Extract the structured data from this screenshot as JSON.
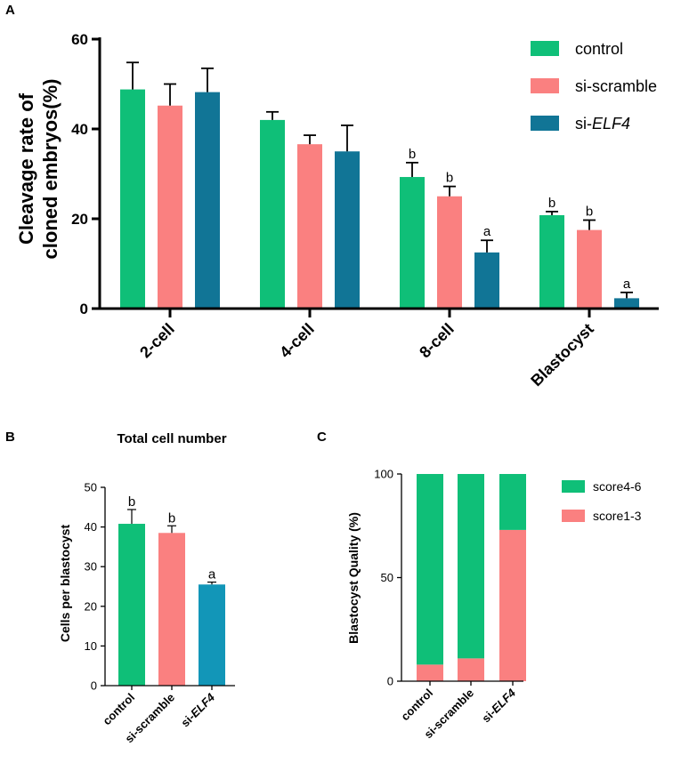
{
  "panel_labels": {
    "a": "A",
    "b": "B",
    "c": "C"
  },
  "chart_data": [
    {
      "id": "A",
      "type": "bar",
      "title": "",
      "ylabel_line1": "Cleavage rate of",
      "ylabel_line2": "cloned embryos(%)",
      "xlabel": "",
      "ylim": [
        0,
        60
      ],
      "yticks": [
        "0",
        "20",
        "40",
        "60"
      ],
      "categories": [
        "2-cell",
        "4-cell",
        "8-cell",
        "Blastocyst"
      ],
      "legend": {
        "position": "top-right",
        "prefix_3": "si-",
        "italic_3": "ELF4"
      },
      "series": [
        {
          "name": "control",
          "color": "#0fbf78",
          "values": [
            48.8,
            42.0,
            29.3,
            20.8
          ],
          "errors": [
            6.0,
            1.8,
            3.2,
            0.8
          ],
          "letters": [
            "",
            "",
            "b",
            "b"
          ]
        },
        {
          "name": "si-scramble",
          "color": "#fa8080",
          "values": [
            45.2,
            36.6,
            25.0,
            17.5
          ],
          "errors": [
            4.8,
            2.0,
            2.2,
            2.2
          ],
          "letters": [
            "",
            "",
            "b",
            "b"
          ]
        },
        {
          "name": "si-ELF4",
          "color": "#117596",
          "values": [
            48.2,
            35.0,
            12.5,
            2.3
          ],
          "errors": [
            5.3,
            5.8,
            2.7,
            1.3
          ],
          "letters": [
            "",
            "",
            "a",
            "a"
          ]
        }
      ]
    },
    {
      "id": "B",
      "type": "bar",
      "title": "Total cell number",
      "ylabel": "Cells per blastocyst",
      "xlabel": "",
      "ylim": [
        0,
        50
      ],
      "yticks": [
        "0",
        "10",
        "20",
        "30",
        "40",
        "50"
      ],
      "categories": [
        "control",
        "si-scramble",
        "si-ELF4"
      ],
      "category_parts": [
        {
          "plain": "control",
          "italic": ""
        },
        {
          "plain": "si-scramble",
          "italic": ""
        },
        {
          "plain": "si-",
          "italic": "ELF4"
        }
      ],
      "values": [
        40.8,
        38.5,
        25.5
      ],
      "errors": [
        3.6,
        1.8,
        0.6
      ],
      "letters": [
        "b",
        "b",
        "a"
      ],
      "colors": [
        "#0fbf78",
        "#fa8080",
        "#1296b8"
      ]
    },
    {
      "id": "C",
      "type": "bar",
      "stacked": true,
      "title": "",
      "ylabel": "Blastocyst Quality (%)",
      "xlabel": "",
      "ylim": [
        0,
        100
      ],
      "yticks": [
        "0",
        "50",
        "100"
      ],
      "categories": [
        "control",
        "si-scramble",
        "si-ELF4"
      ],
      "category_parts": [
        {
          "plain": "control",
          "italic": ""
        },
        {
          "plain": "si-scramble",
          "italic": ""
        },
        {
          "plain": "si-",
          "italic": "ELF4"
        }
      ],
      "legend": {
        "position": "top-right"
      },
      "series": [
        {
          "name": "score1-3",
          "color": "#fa8080",
          "values": [
            8,
            11,
            73
          ]
        },
        {
          "name": "score4-6",
          "color": "#0fbf78",
          "values": [
            92,
            89,
            27
          ]
        }
      ],
      "legend_order": [
        "score4-6",
        "score1-3"
      ]
    }
  ]
}
